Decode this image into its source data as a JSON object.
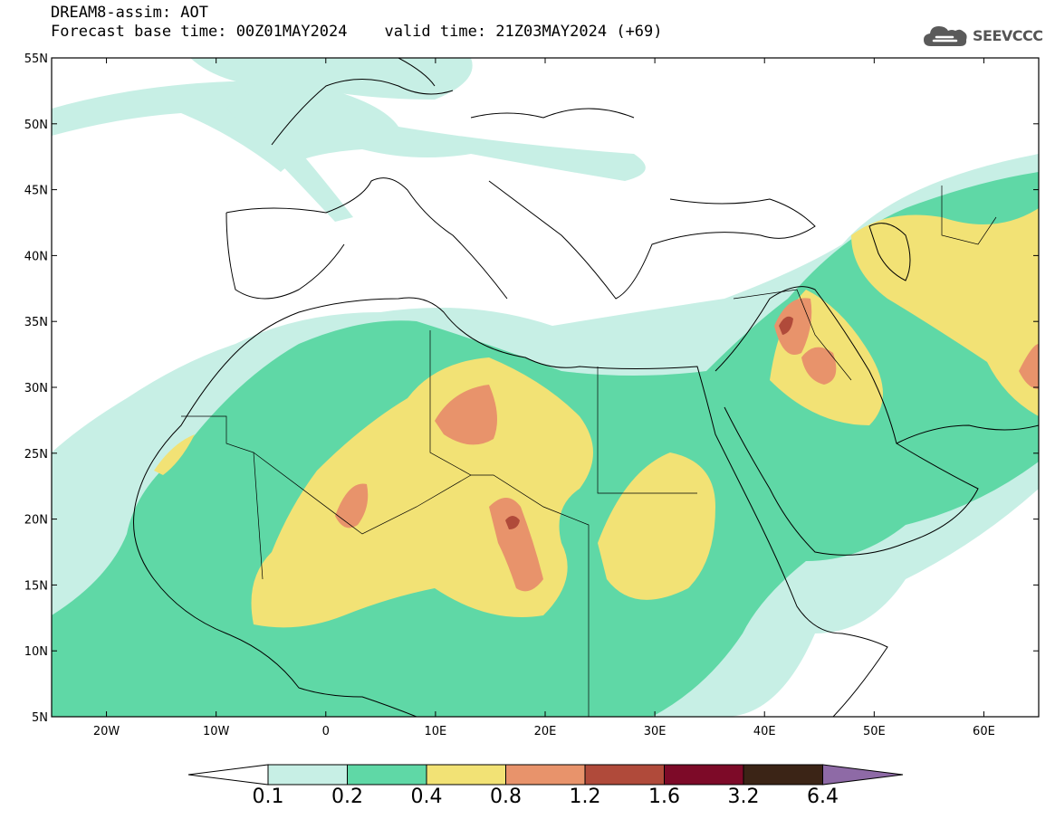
{
  "header": {
    "line1": "DREAM8-assim: AOT",
    "base_time": "Forecast base time: 00Z01MAY2024",
    "valid_time": "valid time: 21Z03MAY2024 (+69)"
  },
  "logo": {
    "text": "SEEVCCC",
    "icon": "cloud-icon"
  },
  "map": {
    "lon_range": [
      -25,
      65
    ],
    "lat_range": [
      5,
      55
    ],
    "lon_ticks": [
      "20W",
      "10W",
      "0",
      "10E",
      "20E",
      "30E",
      "40E",
      "50E",
      "60E"
    ],
    "lat_ticks": [
      "55N",
      "50N",
      "45N",
      "40N",
      "35N",
      "30N",
      "25N",
      "20N",
      "15N",
      "10N",
      "5N"
    ],
    "quantity": "AOT"
  },
  "colorbar": {
    "labels": [
      "0.1",
      "0.2",
      "0.4",
      "0.8",
      "1.2",
      "1.6",
      "3.2",
      "6.4"
    ],
    "colors": [
      "#ffffff",
      "#c7efe5",
      "#5fd8a6",
      "#f2e275",
      "#e8936b",
      "#b04a3a",
      "#7d0a28",
      "#3b2416",
      "#8e6aa6"
    ]
  },
  "colors": {
    "level_01": "#c7efe5",
    "level_02": "#5fd8a6",
    "level_04": "#f2e275",
    "level_08": "#e8936b",
    "level_12": "#b04a3a",
    "level_16": "#7d0a28"
  }
}
